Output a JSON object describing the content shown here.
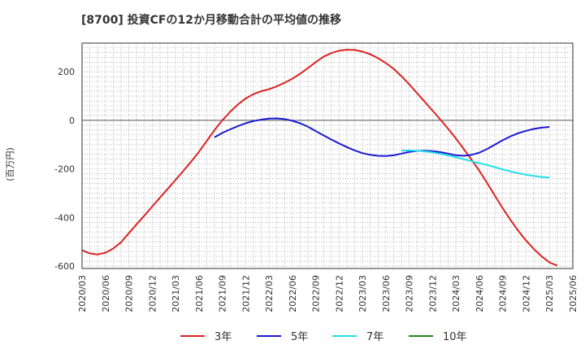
{
  "chart_data": {
    "type": "line",
    "title": "[8700]  投資CFの12か月移動合計の平均値の推移",
    "ylabel": "(百万円)",
    "xlabel": "",
    "ylim": [
      -610,
      318
    ],
    "yticks": [
      200,
      0,
      -200,
      -400,
      -600
    ],
    "grid": true,
    "legend_position": "bottom",
    "x_ticks": [
      "2020/03",
      "2020/06",
      "2020/09",
      "2020/12",
      "2021/03",
      "2021/06",
      "2021/09",
      "2021/12",
      "2022/03",
      "2022/06",
      "2022/09",
      "2022/12",
      "2023/03",
      "2023/06",
      "2023/09",
      "2023/12",
      "2024/03",
      "2024/06",
      "2024/09",
      "2024/12",
      "2025/03",
      "2025/06"
    ],
    "colors": {
      "3年": "#dd2222",
      "5年": "#1a1ad4",
      "7年": "#22e0e8",
      "10年": "#228822"
    },
    "series": [
      {
        "name": "3年",
        "color": "#dd2222",
        "points": [
          [
            "2020/03",
            -535
          ],
          [
            "2020/04",
            -548
          ],
          [
            "2020/05",
            -552
          ],
          [
            "2020/06",
            -545
          ],
          [
            "2020/07",
            -528
          ],
          [
            "2020/08",
            -502
          ],
          [
            "2020/09",
            -465
          ],
          [
            "2020/10",
            -428
          ],
          [
            "2020/11",
            -392
          ],
          [
            "2020/12",
            -355
          ],
          [
            "2021/01",
            -318
          ],
          [
            "2021/02",
            -282
          ],
          [
            "2021/03",
            -245
          ],
          [
            "2021/04",
            -208
          ],
          [
            "2021/05",
            -170
          ],
          [
            "2021/06",
            -130
          ],
          [
            "2021/07",
            -85
          ],
          [
            "2021/08",
            -40
          ],
          [
            "2021/09",
            0
          ],
          [
            "2021/10",
            35
          ],
          [
            "2021/11",
            65
          ],
          [
            "2021/12",
            90
          ],
          [
            "2022/01",
            108
          ],
          [
            "2022/02",
            120
          ],
          [
            "2022/03",
            128
          ],
          [
            "2022/04",
            140
          ],
          [
            "2022/05",
            155
          ],
          [
            "2022/06",
            172
          ],
          [
            "2022/07",
            192
          ],
          [
            "2022/08",
            215
          ],
          [
            "2022/09",
            240
          ],
          [
            "2022/10",
            262
          ],
          [
            "2022/11",
            277
          ],
          [
            "2022/12",
            287
          ],
          [
            "2023/01",
            291
          ],
          [
            "2023/02",
            290
          ],
          [
            "2023/03",
            283
          ],
          [
            "2023/04",
            272
          ],
          [
            "2023/05",
            256
          ],
          [
            "2023/06",
            236
          ],
          [
            "2023/07",
            212
          ],
          [
            "2023/08",
            182
          ],
          [
            "2023/09",
            148
          ],
          [
            "2023/10",
            112
          ],
          [
            "2023/11",
            76
          ],
          [
            "2023/12",
            40
          ],
          [
            "2024/01",
            3
          ],
          [
            "2024/02",
            -35
          ],
          [
            "2024/03",
            -75
          ],
          [
            "2024/04",
            -118
          ],
          [
            "2024/05",
            -162
          ],
          [
            "2024/06",
            -208
          ],
          [
            "2024/07",
            -258
          ],
          [
            "2024/08",
            -310
          ],
          [
            "2024/09",
            -362
          ],
          [
            "2024/10",
            -410
          ],
          [
            "2024/11",
            -455
          ],
          [
            "2024/12",
            -495
          ],
          [
            "2025/01",
            -530
          ],
          [
            "2025/02",
            -560
          ],
          [
            "2025/03",
            -585
          ],
          [
            "2025/04",
            -598
          ]
        ]
      },
      {
        "name": "5年",
        "color": "#1a1ad4",
        "points": [
          [
            "2021/08",
            -70
          ],
          [
            "2021/09",
            -52
          ],
          [
            "2021/10",
            -37
          ],
          [
            "2021/11",
            -24
          ],
          [
            "2021/12",
            -12
          ],
          [
            "2022/01",
            -3
          ],
          [
            "2022/02",
            3
          ],
          [
            "2022/03",
            7
          ],
          [
            "2022/04",
            8
          ],
          [
            "2022/05",
            5
          ],
          [
            "2022/06",
            -2
          ],
          [
            "2022/07",
            -12
          ],
          [
            "2022/08",
            -26
          ],
          [
            "2022/09",
            -44
          ],
          [
            "2022/10",
            -62
          ],
          [
            "2022/11",
            -79
          ],
          [
            "2022/12",
            -95
          ],
          [
            "2023/01",
            -110
          ],
          [
            "2023/02",
            -124
          ],
          [
            "2023/03",
            -135
          ],
          [
            "2023/04",
            -142
          ],
          [
            "2023/05",
            -146
          ],
          [
            "2023/06",
            -147
          ],
          [
            "2023/07",
            -144
          ],
          [
            "2023/08",
            -137
          ],
          [
            "2023/09",
            -130
          ],
          [
            "2023/10",
            -126
          ],
          [
            "2023/11",
            -125
          ],
          [
            "2023/12",
            -127
          ],
          [
            "2024/01",
            -131
          ],
          [
            "2024/02",
            -137
          ],
          [
            "2024/03",
            -144
          ],
          [
            "2024/04",
            -146
          ],
          [
            "2024/05",
            -142
          ],
          [
            "2024/06",
            -133
          ],
          [
            "2024/07",
            -118
          ],
          [
            "2024/08",
            -100
          ],
          [
            "2024/09",
            -82
          ],
          [
            "2024/10",
            -66
          ],
          [
            "2024/11",
            -53
          ],
          [
            "2024/12",
            -43
          ],
          [
            "2025/01",
            -35
          ],
          [
            "2025/02",
            -30
          ],
          [
            "2025/03",
            -27
          ]
        ]
      },
      {
        "name": "7年",
        "color": "#22e0e8",
        "points": [
          [
            "2023/08",
            -125
          ],
          [
            "2023/09",
            -124
          ],
          [
            "2023/10",
            -125
          ],
          [
            "2023/11",
            -128
          ],
          [
            "2023/12",
            -132
          ],
          [
            "2024/01",
            -138
          ],
          [
            "2024/02",
            -145
          ],
          [
            "2024/03",
            -152
          ],
          [
            "2024/04",
            -160
          ],
          [
            "2024/05",
            -168
          ],
          [
            "2024/06",
            -176
          ],
          [
            "2024/07",
            -184
          ],
          [
            "2024/08",
            -193
          ],
          [
            "2024/09",
            -202
          ],
          [
            "2024/10",
            -210
          ],
          [
            "2024/11",
            -218
          ],
          [
            "2024/12",
            -224
          ],
          [
            "2025/01",
            -229
          ],
          [
            "2025/02",
            -233
          ],
          [
            "2025/03",
            -235
          ]
        ]
      },
      {
        "name": "10年",
        "color": "#228822",
        "points": []
      }
    ]
  }
}
